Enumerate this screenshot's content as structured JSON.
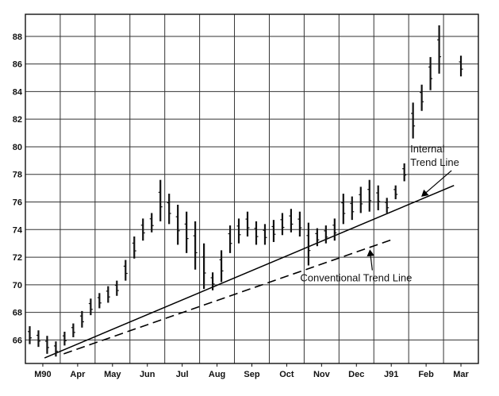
{
  "chart_data": {
    "type": "bar",
    "subtype": "high-low price bars",
    "title": "",
    "xlabel": "",
    "ylabel": "",
    "ylim": [
      64.3,
      89.6
    ],
    "y_ticks": [
      66,
      68,
      70,
      72,
      74,
      76,
      78,
      80,
      82,
      84,
      86,
      88
    ],
    "x_ticks": [
      "M90",
      "Apr",
      "May",
      "Jun",
      "Jul",
      "Aug",
      "Sep",
      "Oct",
      "Nov",
      "Dec",
      "J91",
      "Feb",
      "Mar"
    ],
    "grid": true,
    "series": [
      {
        "x": [
          "M90",
          "M90",
          "M90",
          "M90",
          "Apr",
          "Apr",
          "Apr",
          "Apr",
          "May",
          "May",
          "May",
          "May",
          "Jun",
          "Jun",
          "Jun",
          "Jun",
          "Jul",
          "Jul",
          "Jul",
          "Jul",
          "Aug",
          "Aug",
          "Aug",
          "Aug",
          "Sep",
          "Sep",
          "Sep",
          "Sep",
          "Oct",
          "Oct",
          "Oct",
          "Oct",
          "Nov",
          "Nov",
          "Nov",
          "Nov",
          "Dec",
          "Dec",
          "Dec",
          "Dec",
          "J91",
          "J91",
          "J91",
          "J91",
          "Feb",
          "Feb",
          "Feb",
          "Feb",
          "Mar"
        ],
        "high": [
          67.0,
          66.7,
          66.3,
          65.9,
          66.6,
          67.2,
          68.1,
          69.0,
          69.4,
          69.9,
          70.3,
          71.8,
          73.5,
          74.8,
          75.2,
          77.6,
          76.6,
          75.8,
          75.3,
          74.6,
          73.0,
          70.9,
          72.5,
          74.3,
          74.8,
          75.3,
          74.6,
          74.4,
          74.7,
          75.2,
          75.5,
          75.3,
          74.5,
          74.1,
          74.3,
          74.8,
          76.6,
          76.4,
          77.1,
          77.6,
          77.2,
          76.3,
          77.2,
          78.8,
          83.2,
          84.5,
          86.5,
          88.8,
          86.6
        ],
        "low": [
          65.7,
          65.5,
          65.0,
          64.8,
          65.6,
          66.2,
          66.9,
          67.8,
          68.3,
          68.7,
          69.2,
          70.3,
          71.9,
          73.2,
          73.8,
          74.6,
          74.4,
          72.9,
          72.3,
          71.1,
          69.7,
          69.6,
          70.2,
          72.3,
          73.0,
          73.5,
          72.9,
          72.9,
          73.1,
          73.6,
          73.8,
          73.5,
          71.4,
          72.8,
          73.0,
          73.2,
          74.4,
          74.7,
          75.2,
          75.3,
          75.4,
          75.2,
          76.2,
          77.5,
          80.6,
          82.6,
          84.1,
          85.3,
          85.1
        ]
      }
    ],
    "trend_lines": [
      {
        "label": "Internal Trend Line",
        "style": "solid",
        "from": {
          "x": "M90",
          "y": 64.7
        },
        "to": {
          "x": "Mar",
          "y": 77.2
        }
      },
      {
        "label": "Conventional Trend Line",
        "style": "dashed",
        "from": {
          "x": "Apr",
          "y": 65.0
        },
        "to": {
          "x": "J91",
          "y": 73.3
        }
      }
    ],
    "annotations": [
      {
        "text_lines": [
          "Internal",
          "Trend Line"
        ],
        "points_to": "Internal Trend Line"
      },
      {
        "text_lines": [
          "Conventional Trend Line"
        ],
        "points_to": "Conventional Trend Line"
      }
    ]
  }
}
